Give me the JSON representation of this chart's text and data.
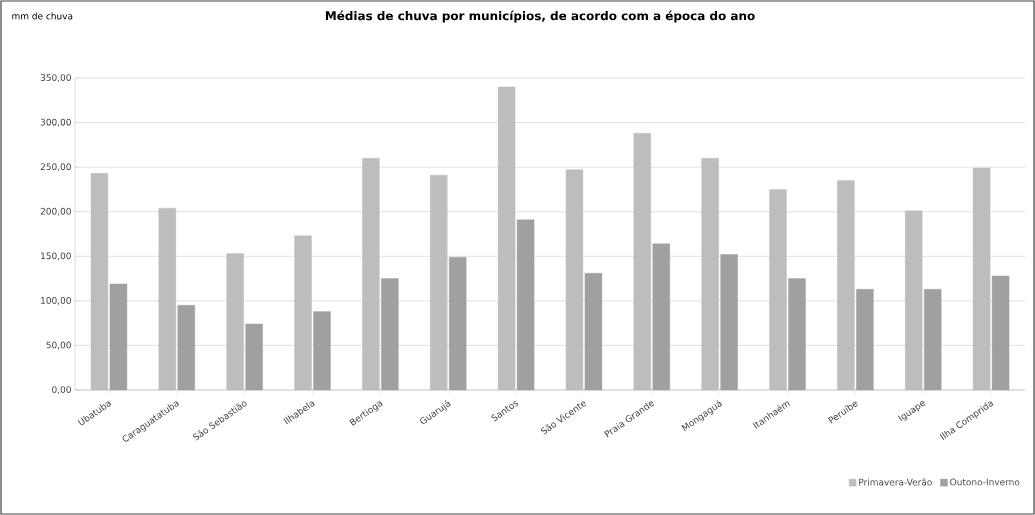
{
  "chart_data": {
    "type": "bar",
    "title": "Médias de chuva por municípios, de acordo com a época do ano",
    "annotations": [
      "mm de chuva"
    ],
    "categories": [
      "Ubatuba",
      "Caraguatatuba",
      "São Sebastião",
      "Ilhabela",
      "Bertioga",
      "Guarujá",
      "Santos",
      "São Vicente",
      "Praia Grande",
      "Mongaguá",
      "Itanhaém",
      "Peruíbe",
      "Iguape",
      "Ilha Comprida"
    ],
    "series": [
      {
        "name": "Primavera-Verão",
        "color": "#bdbdbd",
        "values": [
          243,
          204,
          153,
          173,
          260,
          241,
          340,
          247,
          288,
          260,
          225,
          235,
          201,
          249
        ]
      },
      {
        "name": "Outono-Inverno",
        "color": "#a0a0a0",
        "values": [
          119,
          95,
          74,
          88,
          125,
          149,
          191,
          131,
          164,
          152,
          125,
          113,
          113,
          128
        ]
      }
    ],
    "ylim": [
      0,
      350
    ],
    "yticks": [
      {
        "value": 0,
        "label": "0,00"
      },
      {
        "value": 50,
        "label": "50,00"
      },
      {
        "value": 100,
        "label": "100,00"
      },
      {
        "value": 150,
        "label": "150,00"
      },
      {
        "value": 200,
        "label": "200,00"
      },
      {
        "value": 250,
        "label": "250,00"
      },
      {
        "value": 300,
        "label": "300,00"
      },
      {
        "value": 350,
        "label": "350,00"
      }
    ],
    "grid": "y",
    "legend": "bottom right"
  }
}
